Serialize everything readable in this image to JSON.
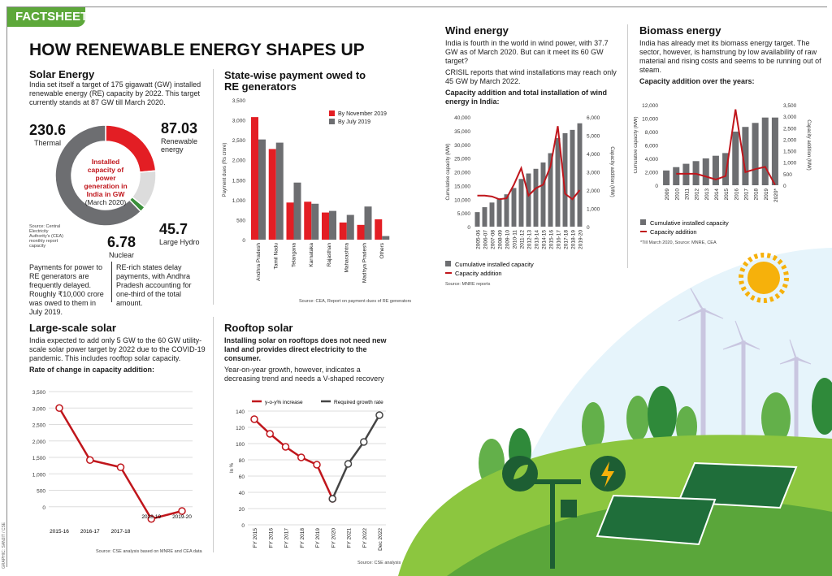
{
  "header": {
    "tag": "FACTSHEET",
    "title": "HOW RENEWABLE ENERGY SHAPES UP",
    "credit": "GRAPHIC: SANJIT / CSE"
  },
  "solar": {
    "title": "Solar Energy",
    "intro": "India set itself a target of 175 gigawatt (GW) installed renewable energy (RE) capacity by 2022. This target currently stands at 87 GW till March 2020.",
    "source": "Source: Central Electricity Authority's (CEA) monthly report capacity",
    "note_left": "Payments for power to RE generators are frequently delayed. Roughly ₹10,000 crore was owed to them in July 2019.",
    "note_right": "RE-rich states delay payments, with Andhra Pradesh accounting for one-third of the total amount."
  },
  "state": {
    "title": "State-wise payment owed to RE generators",
    "source": "Source: CEA, Report on payment dues of RE generators"
  },
  "wind": {
    "title": "Wind energy",
    "p1": "India is fourth in the world in wind power, with 37.7 GW as of March 2020. But can it meet its 60 GW target?",
    "p2": "CRISIL reports that wind installations may reach only 45 GW by March 2022.",
    "sub": "Capacity addition and total installation of wind energy in India:",
    "source": "Source: MNRE reports"
  },
  "biomass": {
    "title": "Biomass energy",
    "p1": "India has already met its biomass energy target. The sector, however, is hamstrung by low availability of raw material and rising costs and seems to be running out of steam.",
    "sub": "Capacity addition over the years:",
    "source": "*Till March 2020, Source: MNRE, CEA"
  },
  "large": {
    "title": "Large-scale solar",
    "p1": "India expected to add only 5 GW to the 60 GW utility-scale solar power target by 2022 due to the COVID-19 pandemic. This includes rooftop solar capacity.",
    "sub": "Rate of change in capacity addition:",
    "source": "Source: CSE analysis based on MNRE and CEA data"
  },
  "rooftop": {
    "title": "Rooftop solar",
    "p1": "Installing solar on rooftops does not need new land and provides direct electricity to the consumer.",
    "p2": "Year-on-year growth, however, indicates a decreasing trend and needs a V-shaped recovery",
    "source": "Source: CSE analysis"
  },
  "colors": {
    "red": "#e31e24",
    "darkred": "#c0161c",
    "gray": "#6d6e71",
    "lightgray": "#dcdcdc",
    "green": "#3a8f3a",
    "brand": "#5da83a"
  },
  "chart_data": [
    {
      "type": "pie",
      "title": "Installed capacity of power generation in India in GW",
      "subtitle": "(March 2020)",
      "unit": "GW",
      "slices": [
        {
          "name": "Renewable energy",
          "value": 87.03,
          "color": "#e31e24"
        },
        {
          "name": "Large Hydro",
          "value": 45.7,
          "color": "#dcdcdc"
        },
        {
          "name": "Nuclear",
          "value": 6.78,
          "color": "#3a8f3a"
        },
        {
          "name": "Thermal",
          "value": 230.6,
          "color": "#6d6e71"
        }
      ]
    },
    {
      "type": "bar",
      "ylabel": "Payment dues (Rs crore)",
      "ylim": [
        0,
        3500
      ],
      "yticks": [
        "0",
        "500",
        "1,000",
        "1,500",
        "2,000",
        "2,500",
        "3,000",
        "3,500"
      ],
      "legend": "top-right",
      "categories": [
        "Andhra Pradesh",
        "Tamil Nadu",
        "Telangana",
        "Karnataka",
        "Rajasthan",
        "Maharashtra",
        "Madhya Pradesh",
        "Others"
      ],
      "series": [
        {
          "name": "By November 2019",
          "color": "#e31e24",
          "values": [
            3070,
            2270,
            930,
            950,
            680,
            430,
            370,
            510
          ]
        },
        {
          "name": "By July 2019",
          "color": "#6d6e71",
          "values": [
            2510,
            2430,
            1430,
            900,
            720,
            620,
            830,
            90
          ]
        }
      ]
    },
    {
      "type": "bar+line",
      "ylabel": "Cumulative capacity (MW)",
      "y2label": "Capacity addition (MW)",
      "ylim": [
        0,
        40000
      ],
      "y2lim": [
        0,
        6000
      ],
      "yticks": [
        "0",
        "5,000",
        "10,000",
        "15,000",
        "20,000",
        "25,000",
        "30,000",
        "35,000",
        "40,000"
      ],
      "y2ticks": [
        "0",
        "1,000",
        "2,000",
        "3,000",
        "4,000",
        "5,000",
        "6,000"
      ],
      "categories": [
        "2005-06",
        "2006-07",
        "2007-08",
        "2008-09",
        "2009-10",
        "2010-11",
        "2011-12",
        "2012-13",
        "2013-14",
        "2014-15",
        "2015-16",
        "2016-17",
        "2017-18",
        "2018-19",
        "2019-20"
      ],
      "series": [
        {
          "name": "Cumulative installed capacity",
          "color": "#6d6e71",
          "values": [
            5300,
            7100,
            8800,
            10300,
            11800,
            14100,
            17400,
            19400,
            21100,
            23400,
            26800,
            32300,
            34100,
            35300,
            37700
          ]
        },
        {
          "name": "Capacity addition",
          "color": "#c0161c",
          "axis": "right",
          "values": [
            1700,
            1700,
            1650,
            1500,
            1550,
            2300,
            3200,
            1700,
            2100,
            2300,
            3300,
            5500,
            1800,
            1500,
            2000
          ]
        }
      ]
    },
    {
      "type": "bar+line",
      "ylabel": "Cumulative capacity (MW)",
      "y2label": "Capacity addition (MW)",
      "ylim": [
        0,
        12000
      ],
      "y2lim": [
        0,
        3500
      ],
      "yticks": [
        "0",
        "2,000",
        "4,000",
        "6,000",
        "8,000",
        "10,000",
        "12,000"
      ],
      "y2ticks": [
        "0",
        "500",
        "1,000",
        "1,500",
        "2,000",
        "2,500",
        "3,000",
        "3,500"
      ],
      "categories": [
        "2009",
        "2010",
        "2011",
        "2012",
        "2013",
        "2014",
        "2015",
        "2016",
        "2017",
        "2018",
        "2019",
        "2020*"
      ],
      "series": [
        {
          "name": "Cumulative installed capacity",
          "color": "#6d6e71",
          "values": [
            2200,
            2700,
            3200,
            3600,
            4000,
            4400,
            4800,
            8000,
            8700,
            9300,
            10100,
            10100
          ]
        },
        {
          "name": "Capacity addition",
          "color": "#c0161c",
          "axis": "right",
          "values": [
            null,
            500,
            500,
            500,
            380,
            250,
            400,
            3300,
            570,
            700,
            800,
            20
          ]
        }
      ]
    },
    {
      "type": "line",
      "ylim": [
        -500,
        3500
      ],
      "yticks": [
        "0",
        "500",
        "1,000",
        "1,500",
        "2,000",
        "2,500",
        "3,000",
        "3,500"
      ],
      "categories": [
        "2015-16",
        "2016-17",
        "2017-18",
        "2018-19",
        "2019-20"
      ],
      "series": [
        {
          "color": "#c0161c",
          "values": [
            3000,
            1420,
            1200,
            -370,
            -130
          ]
        }
      ]
    },
    {
      "type": "line",
      "ylabel": "In %",
      "ylim": [
        0,
        140
      ],
      "yticks": [
        "0",
        "20",
        "40",
        "60",
        "80",
        "100",
        "120",
        "140"
      ],
      "legend": "top",
      "categories": [
        "FY 2015",
        "FY 2016",
        "FY 2017",
        "FY 2018",
        "FY 2019",
        "FY 2020",
        "FY 2021",
        "FY 2022",
        "Dec 2022"
      ],
      "series": [
        {
          "name": "y-o-y% increase",
          "color": "#c0161c",
          "values": [
            130,
            112,
            96,
            83,
            74,
            32,
            null,
            null,
            null
          ]
        },
        {
          "name": "Required growth rate",
          "color": "#444",
          "values": [
            null,
            null,
            null,
            null,
            null,
            32,
            75,
            102,
            135
          ]
        }
      ]
    }
  ]
}
